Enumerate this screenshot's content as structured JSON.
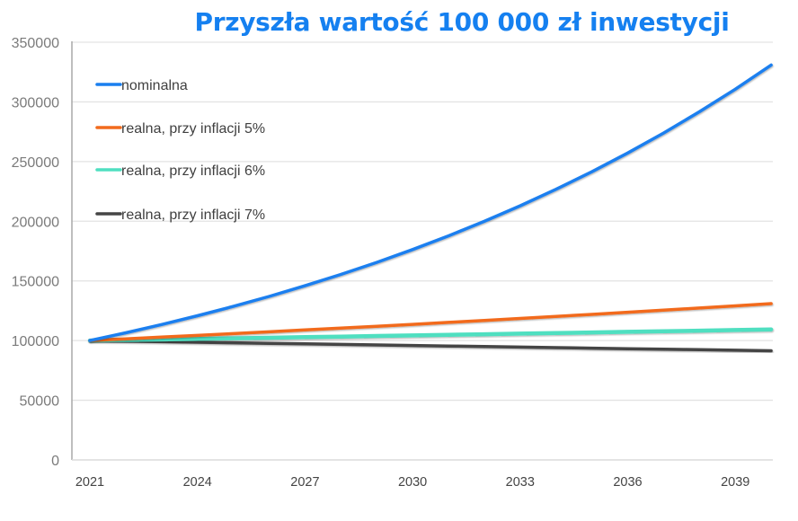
{
  "chart_data": {
    "type": "line",
    "title": "Przyszła wartość 100 000 zł inwestycji",
    "xlabel": "",
    "ylabel": "",
    "x": [
      2021,
      2022,
      2023,
      2024,
      2025,
      2026,
      2027,
      2028,
      2029,
      2030,
      2031,
      2032,
      2033,
      2034,
      2035,
      2036,
      2037,
      2038,
      2039,
      2040
    ],
    "x_ticks": [
      "2021",
      "2024",
      "2027",
      "2030",
      "2033",
      "2036",
      "2039"
    ],
    "y_ticks": [
      "0",
      "50000",
      "100000",
      "150000",
      "200000",
      "250000",
      "300000",
      "350000"
    ],
    "ylim": [
      0,
      350000
    ],
    "grid": true,
    "legend_position": "top-left",
    "series": [
      {
        "name": "nominalna",
        "color": "#1A7FEF",
        "values": [
          100000,
          106500,
          113423,
          120795,
          128647,
          137009,
          145914,
          155399,
          165500,
          176257,
          187714,
          199915,
          212910,
          226749,
          241488,
          257184,
          273901,
          291705,
          310666,
          330859
        ]
      },
      {
        "name": "realna, przy inflacji 5%",
        "color": "#F26B1D",
        "values": [
          100000,
          101429,
          102878,
          104348,
          105838,
          107350,
          108884,
          110439,
          112017,
          113617,
          115240,
          116886,
          118556,
          120250,
          121967,
          123710,
          125477,
          127269,
          129087,
          130931
        ]
      },
      {
        "name": "realna, przy inflacji 6%",
        "color": "#4FDFC0",
        "values": [
          100000,
          100472,
          100946,
          101422,
          101900,
          102381,
          102864,
          103349,
          103837,
          104327,
          104819,
          105313,
          105810,
          106309,
          106810,
          107314,
          107820,
          108329,
          108840,
          109353
        ]
      },
      {
        "name": "realna, przy inflacji 7%",
        "color": "#454545",
        "values": [
          100000,
          99533,
          99068,
          98605,
          98144,
          97685,
          97229,
          96774,
          96322,
          95872,
          95424,
          94978,
          94534,
          94092,
          93653,
          93215,
          92779,
          92346,
          91914,
          91485
        ]
      }
    ]
  }
}
